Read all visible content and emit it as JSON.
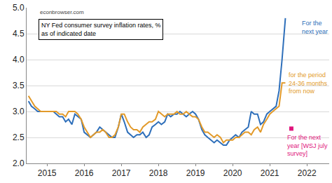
{
  "chart_data": {
    "type": "line",
    "title": "NY Fed consumer survey inflation rates, %\nas of indicated date",
    "annotations": [
      "econbrowser.com"
    ],
    "x": [
      2014.5,
      2014.58,
      2014.67,
      2014.75,
      2014.83,
      2014.92,
      2015.0,
      2015.08,
      2015.17,
      2015.25,
      2015.33,
      2015.42,
      2015.5,
      2015.58,
      2015.67,
      2015.75,
      2015.83,
      2015.92,
      2016.0,
      2016.08,
      2016.17,
      2016.25,
      2016.33,
      2016.42,
      2016.5,
      2016.58,
      2016.67,
      2016.75,
      2016.83,
      2016.92,
      2017.0,
      2017.08,
      2017.17,
      2017.25,
      2017.33,
      2017.42,
      2017.5,
      2017.58,
      2017.67,
      2017.75,
      2017.83,
      2017.92,
      2018.0,
      2018.08,
      2018.17,
      2018.25,
      2018.33,
      2018.42,
      2018.5,
      2018.58,
      2018.67,
      2018.75,
      2018.83,
      2018.92,
      2019.0,
      2019.08,
      2019.17,
      2019.25,
      2019.33,
      2019.42,
      2019.5,
      2019.58,
      2019.67,
      2019.75,
      2019.83,
      2019.92,
      2020.0,
      2020.08,
      2020.17,
      2020.25,
      2020.33,
      2020.42,
      2020.5,
      2020.58,
      2020.67,
      2020.75,
      2020.83,
      2020.92,
      2021.0,
      2021.08,
      2021.17,
      2021.25,
      2021.33,
      2021.42
    ],
    "series": [
      {
        "name": "For the\nnext year",
        "type": "line",
        "color": "#2e6fba",
        "values": [
          3.2,
          3.1,
          3.05,
          3.0,
          3.0,
          3.0,
          3.0,
          3.0,
          3.0,
          2.95,
          2.9,
          2.9,
          2.8,
          2.85,
          2.75,
          2.95,
          2.9,
          2.85,
          2.6,
          2.55,
          2.5,
          2.55,
          2.6,
          2.7,
          2.65,
          2.6,
          2.55,
          2.5,
          2.5,
          2.7,
          2.95,
          2.8,
          2.6,
          2.55,
          2.5,
          2.55,
          2.55,
          2.6,
          2.5,
          2.55,
          2.7,
          2.75,
          2.8,
          2.75,
          2.8,
          2.95,
          2.9,
          2.95,
          2.95,
          3.0,
          2.95,
          2.9,
          2.95,
          3.0,
          2.95,
          2.85,
          2.65,
          2.55,
          2.5,
          2.45,
          2.4,
          2.45,
          2.4,
          2.35,
          2.35,
          2.45,
          2.5,
          2.55,
          2.5,
          2.6,
          2.65,
          2.7,
          3.0,
          2.95,
          2.95,
          2.75,
          2.8,
          2.95,
          3.0,
          3.05,
          3.1,
          3.4,
          4.0,
          4.8
        ]
      },
      {
        "name": "for the period\n24-36 months\nfrom now",
        "type": "line",
        "color": "#e29a2a",
        "values": [
          3.3,
          3.2,
          3.1,
          3.05,
          3.0,
          3.0,
          3.0,
          3.0,
          3.0,
          3.0,
          2.95,
          2.95,
          2.9,
          3.0,
          3.0,
          3.0,
          2.95,
          2.85,
          2.7,
          2.6,
          2.5,
          2.55,
          2.6,
          2.6,
          2.65,
          2.6,
          2.5,
          2.5,
          2.55,
          2.7,
          2.95,
          2.95,
          2.8,
          2.7,
          2.65,
          2.65,
          2.6,
          2.7,
          2.75,
          2.8,
          2.8,
          2.85,
          3.0,
          2.95,
          2.9,
          2.95,
          2.95,
          2.95,
          3.0,
          2.95,
          2.95,
          3.0,
          2.95,
          2.9,
          2.9,
          2.85,
          2.7,
          2.6,
          2.6,
          2.55,
          2.5,
          2.55,
          2.5,
          2.4,
          2.45,
          2.45,
          2.45,
          2.5,
          2.5,
          2.55,
          2.6,
          2.6,
          2.55,
          2.65,
          2.7,
          2.6,
          2.75,
          2.85,
          2.95,
          3.0,
          3.05,
          3.1,
          3.55,
          3.55
        ]
      },
      {
        "name": "For the next\nyear [WSJ july\nsurvey]",
        "type": "scatter",
        "marker": "square",
        "color": "#e0157c",
        "x": [
          2021.58
        ],
        "values": [
          2.67
        ]
      }
    ],
    "xlim": [
      2014.45,
      2022.6
    ],
    "xticks": [
      2015,
      2016,
      2017,
      2018,
      2019,
      2020,
      2021,
      2022
    ],
    "ylim": [
      2.0,
      5.0
    ],
    "yticks": [
      {
        "value": 2.0,
        "label": "2.0"
      },
      {
        "value": 2.5,
        "label": "2.5"
      },
      {
        "value": 3.0,
        "label": "3.0"
      },
      {
        "value": 3.5,
        "label": "3.5"
      },
      {
        "value": 4.0,
        "label": "4.0"
      },
      {
        "value": 4.5,
        "label": "4.5"
      },
      {
        "value": 5.0,
        "label": "5.0"
      }
    ],
    "grid": true
  }
}
